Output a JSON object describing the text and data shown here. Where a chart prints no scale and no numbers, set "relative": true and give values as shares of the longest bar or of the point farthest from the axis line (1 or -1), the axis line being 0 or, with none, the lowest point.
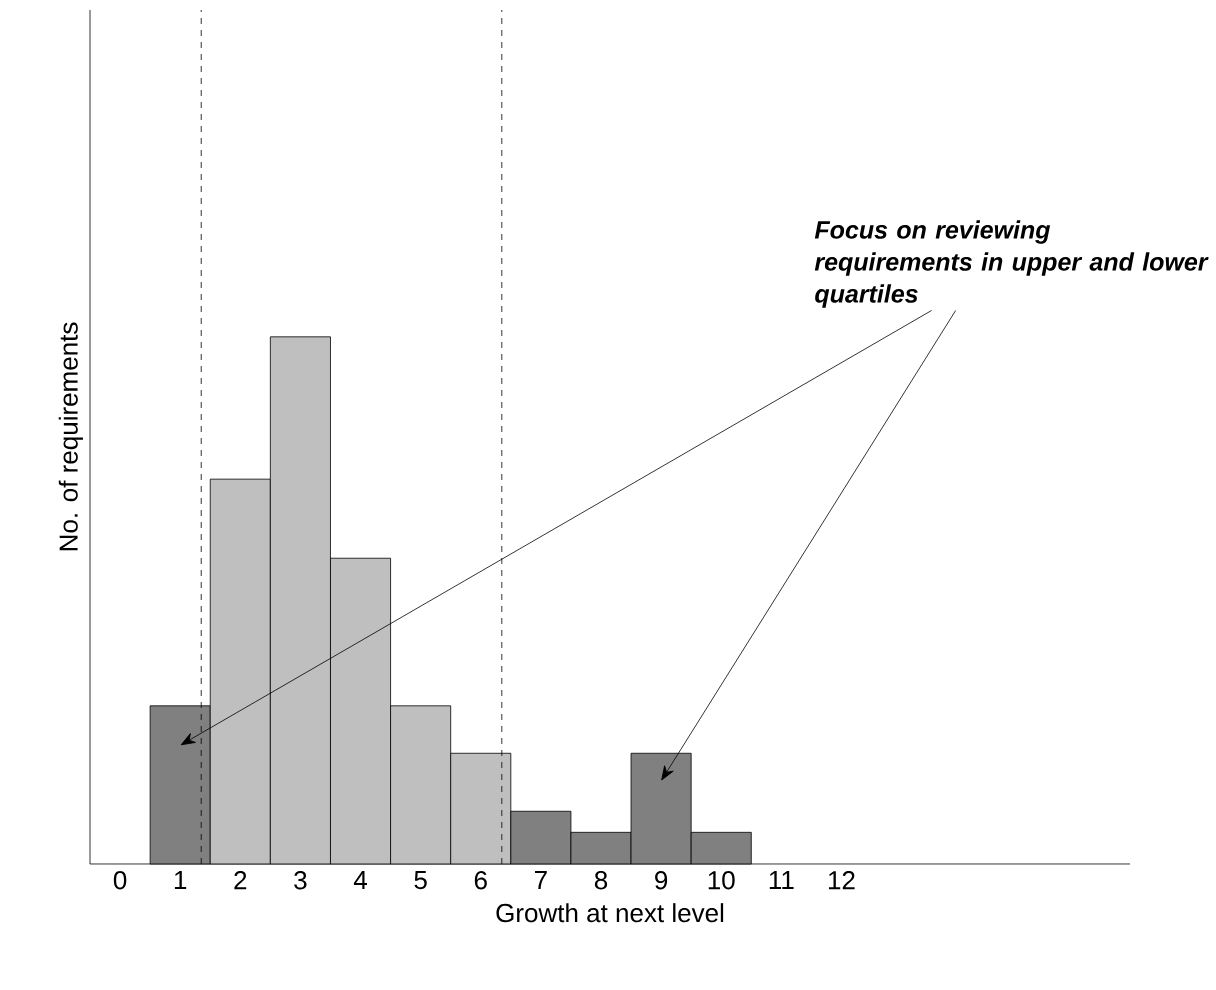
{
  "chart_data": {
    "type": "bar",
    "xlabel": "Growth at next level",
    "ylabel": "No. of requirements",
    "x": [
      1,
      2,
      3,
      4,
      5,
      6,
      7,
      8,
      9,
      10
    ],
    "values": [
      0.3,
      0.73,
      1,
      0.58,
      0.3,
      0.21,
      0.1,
      0.06,
      0.21,
      0.06
    ],
    "colors": [
      "#808080",
      "#bfbfbf",
      "#bfbfbf",
      "#bfbfbf",
      "#bfbfbf",
      "#bfbfbf",
      "#808080",
      "#808080",
      "#808080",
      "#808080"
    ],
    "relative": true,
    "xlim": [
      -0.5,
      16.8
    ],
    "xticks": [
      0,
      1,
      2,
      3,
      4,
      5,
      6,
      7,
      8,
      9,
      10,
      11,
      12
    ],
    "ref_lines": [
      {
        "axis": "x",
        "value": 1.35,
        "line_style": "dashed"
      },
      {
        "axis": "x",
        "value": 6.35,
        "line_style": "dashed"
      }
    ],
    "annotations": [
      "Focus on reviewing requirements in upper and lower quartiles"
    ]
  }
}
